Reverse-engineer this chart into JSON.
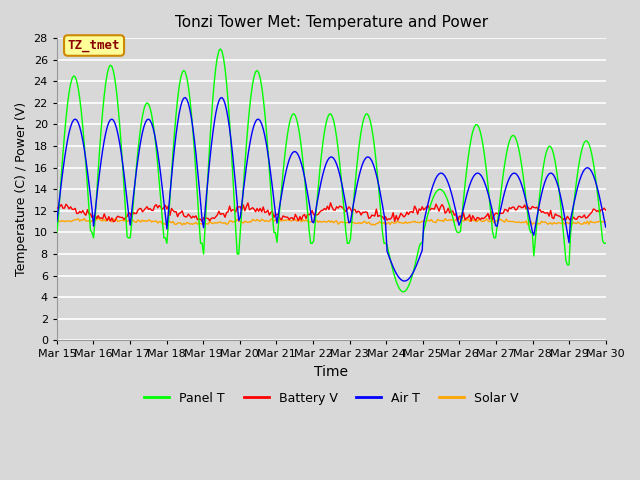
{
  "title": "Tonzi Tower Met: Temperature and Power",
  "xlabel": "Time",
  "ylabel": "Temperature (C) / Power (V)",
  "ylim": [
    0,
    28
  ],
  "yticks": [
    0,
    2,
    4,
    6,
    8,
    10,
    12,
    14,
    16,
    18,
    20,
    22,
    24,
    26,
    28
  ],
  "xtick_labels": [
    "Mar 15",
    "Mar 16",
    "Mar 17",
    "Mar 18",
    "Mar 19",
    "Mar 20",
    "Mar 21",
    "Mar 22",
    "Mar 23",
    "Mar 24",
    "Mar 25",
    "Mar 26",
    "Mar 27",
    "Mar 28",
    "Mar 29",
    "Mar 30"
  ],
  "background_color": "#d8d8d8",
  "plot_bg_color": "#d8d8d8",
  "grid_color": "#ffffff",
  "colors": {
    "panel_t": "#00ff00",
    "battery_v": "#ff0000",
    "air_t": "#0000ff",
    "solar_v": "#ffa500"
  },
  "legend_labels": [
    "Panel T",
    "Battery V",
    "Air T",
    "Solar V"
  ],
  "annotation_text": "TZ_tmet",
  "annotation_bg": "#ffff99",
  "annotation_border": "#cc8800",
  "xlim": [
    0,
    15
  ],
  "n_days": 15,
  "n_points": 360
}
